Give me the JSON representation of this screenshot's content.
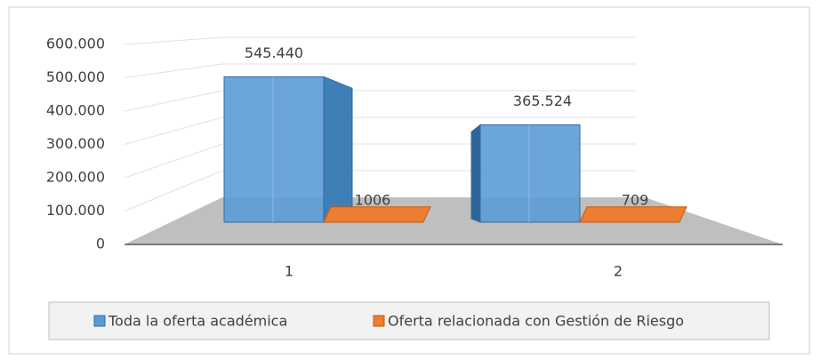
{
  "chart_data": {
    "type": "bar3d",
    "categories": [
      "1",
      "2"
    ],
    "series": [
      {
        "name": "Toda la oferta académica",
        "color": "#5b9bd5",
        "values": [
          545440,
          365524
        ],
        "value_labels": [
          "545.440",
          "365.524"
        ]
      },
      {
        "name": "Oferta relacionada con Gestión de Riesgo",
        "color": "#ed7d31",
        "values": [
          1006,
          709
        ]
      }
    ],
    "ylim": [
      0,
      600000
    ],
    "yticks": [
      0,
      {
        "value": 100000,
        "label": "100.000"
      },
      {
        "value": 200000,
        "label": "200.000"
      },
      {
        "value": 300000,
        "label": "300.000"
      },
      {
        "value": 400000,
        "label": "400.000"
      },
      {
        "value": 500000,
        "label": "500.000"
      },
      {
        "value": 600000,
        "label": "600.000"
      }
    ],
    "grid": true,
    "legend": "bottom"
  }
}
